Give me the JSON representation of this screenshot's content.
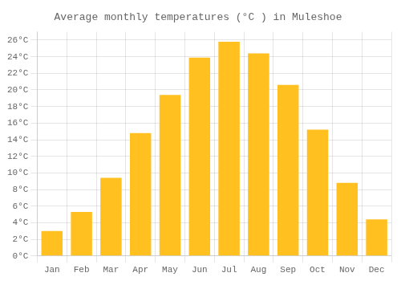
{
  "chart_data": {
    "type": "bar",
    "title": "Average monthly temperatures (°C ) in Muleshoe",
    "categories": [
      "Jan",
      "Feb",
      "Mar",
      "Apr",
      "May",
      "Jun",
      "Jul",
      "Aug",
      "Sep",
      "Oct",
      "Nov",
      "Dec"
    ],
    "values": [
      3.0,
      5.3,
      9.4,
      14.8,
      19.4,
      23.9,
      25.8,
      24.4,
      20.6,
      15.2,
      8.8,
      4.4
    ],
    "color": "#FFC020",
    "ylim": [
      0,
      27
    ],
    "yticks": [
      {
        "value": 0,
        "label": "0°C"
      },
      {
        "value": 2,
        "label": "2°C"
      },
      {
        "value": 4,
        "label": "4°C"
      },
      {
        "value": 6,
        "label": "6°C"
      },
      {
        "value": 8,
        "label": "8°C"
      },
      {
        "value": 10,
        "label": "10°C"
      },
      {
        "value": 12,
        "label": "12°C"
      },
      {
        "value": 14,
        "label": "14°C"
      },
      {
        "value": 16,
        "label": "16°C"
      },
      {
        "value": 18,
        "label": "18°C"
      },
      {
        "value": 20,
        "label": "20°C"
      },
      {
        "value": 22,
        "label": "22°C"
      },
      {
        "value": 24,
        "label": "24°C"
      },
      {
        "value": 26,
        "label": "26°C"
      }
    ],
    "grid": true
  }
}
